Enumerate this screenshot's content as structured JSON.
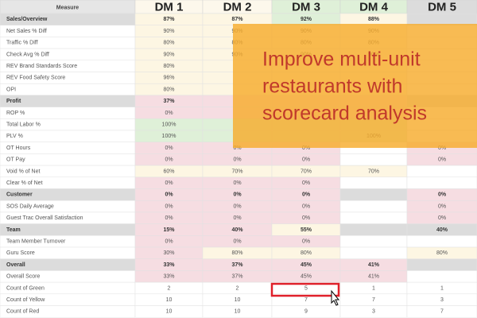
{
  "table": {
    "header": [
      "Measure",
      "DM 1",
      "DM 2",
      "DM 3",
      "DM 4",
      "DM 5"
    ],
    "header_fills": [
      "#e6e6e6",
      "#fdf8ec",
      "#fdf8ec",
      "#dff0d8",
      "#dff0d8",
      "#dcdcdc"
    ],
    "rows": [
      {
        "measure": "Sales/Overview",
        "section": true,
        "values": [
          "87%",
          "87%",
          "92%",
          "88%",
          null
        ],
        "fills": [
          "#fdf6e3",
          "#fdf6e3",
          "#dff0d8",
          "#fdf6e3",
          "#dcdcdc"
        ]
      },
      {
        "measure": "Net Sales % Diff",
        "values": [
          "90%",
          "90%",
          "90%",
          "90%",
          null
        ],
        "fills": [
          "#fdf6e3",
          "#fdf6e3",
          "#fdf6e3",
          "#fdf6e3",
          "#ffffff"
        ]
      },
      {
        "measure": "Traffic % Diff",
        "values": [
          "80%",
          "80%",
          "80%",
          "80%",
          null
        ],
        "fills": [
          "#fdf6e3",
          "#fdf6e3",
          "#fdf6e3",
          "#fdf6e3",
          "#ffffff"
        ]
      },
      {
        "measure": "Check Avg % Diff",
        "values": [
          "90%",
          "90%",
          "90%",
          "90%",
          null
        ],
        "fills": [
          "#fdf6e3",
          "#fdf6e3",
          "#fdf6e3",
          "#fdf6e3",
          "#ffffff"
        ]
      },
      {
        "measure": "REV Brand Standards Score",
        "values": [
          "80%",
          null,
          null,
          null,
          null
        ],
        "fills": [
          "#fdf6e3",
          "#fdf6e3",
          "#fdf6e3",
          "#fdf6e3",
          "#ffffff"
        ]
      },
      {
        "measure": "REV Food Safety Score",
        "values": [
          "96%",
          null,
          null,
          null,
          null
        ],
        "fills": [
          "#fdf6e3",
          "#fdf6e3",
          "#fdf6e3",
          "#fdf6e3",
          "#ffffff"
        ]
      },
      {
        "measure": "OPI",
        "values": [
          "80%",
          null,
          null,
          null,
          null
        ],
        "fills": [
          "#fdf6e3",
          "#fdf6e3",
          "#fdf6e3",
          "#fdf6e3",
          "#ffffff"
        ]
      },
      {
        "measure": "Profit",
        "section": true,
        "values": [
          "37%",
          null,
          null,
          null,
          null
        ],
        "fills": [
          "#f6dde2",
          "#f6dde2",
          "#f6dde2",
          "#f6dde2",
          "#dcdcdc"
        ]
      },
      {
        "measure": "ROP %",
        "values": [
          "0%",
          null,
          null,
          null,
          null
        ],
        "fills": [
          "#f6dde2",
          "#f6dde2",
          "#f6dde2",
          "#f6dde2",
          "#ffffff"
        ]
      },
      {
        "measure": "Total Labor %",
        "values": [
          "100%",
          null,
          null,
          null,
          null
        ],
        "fills": [
          "#dff0d8",
          "#dff0d8",
          "#dff0d8",
          "#dff0d8",
          "#ffffff"
        ]
      },
      {
        "measure": "PLV %",
        "values": [
          "100%",
          null,
          null,
          "100%",
          null
        ],
        "fills": [
          "#dff0d8",
          "#dff0d8",
          "#dff0d8",
          "#dff0d8",
          "#ffffff"
        ]
      },
      {
        "measure": "OT Hours",
        "values": [
          "0%",
          "0%",
          "0%",
          null,
          "0%"
        ],
        "fills": [
          "#f6dde2",
          "#f6dde2",
          "#f6dde2",
          "#ffffff",
          "#f6dde2"
        ]
      },
      {
        "measure": "OT Pay",
        "values": [
          "0%",
          "0%",
          "0%",
          null,
          "0%"
        ],
        "fills": [
          "#f6dde2",
          "#f6dde2",
          "#f6dde2",
          "#ffffff",
          "#f6dde2"
        ]
      },
      {
        "measure": "Void % of Net",
        "values": [
          "60%",
          "70%",
          "70%",
          "70%",
          null
        ],
        "fills": [
          "#fdf6e3",
          "#fdf6e3",
          "#fdf6e3",
          "#fdf6e3",
          "#ffffff"
        ]
      },
      {
        "measure": "Clear % of Net",
        "values": [
          "0%",
          "0%",
          "0%",
          null,
          null
        ],
        "fills": [
          "#f6dde2",
          "#f6dde2",
          "#f6dde2",
          "#ffffff",
          "#ffffff"
        ]
      },
      {
        "measure": "Customer",
        "section": true,
        "values": [
          "0%",
          "0%",
          "0%",
          null,
          "0%"
        ],
        "fills": [
          "#f6dde2",
          "#f6dde2",
          "#f6dde2",
          "#dcdcdc",
          "#f6dde2"
        ]
      },
      {
        "measure": "SOS Daily Average",
        "values": [
          "0%",
          "0%",
          "0%",
          null,
          "0%"
        ],
        "fills": [
          "#f6dde2",
          "#f6dde2",
          "#f6dde2",
          "#ffffff",
          "#f6dde2"
        ]
      },
      {
        "measure": "Guest Trac Overall Satisfaction",
        "values": [
          "0%",
          "0%",
          "0%",
          null,
          "0%"
        ],
        "fills": [
          "#f6dde2",
          "#f6dde2",
          "#f6dde2",
          "#ffffff",
          "#f6dde2"
        ]
      },
      {
        "measure": "Team",
        "section": true,
        "values": [
          "15%",
          "40%",
          "55%",
          null,
          "40%"
        ],
        "fills": [
          "#f6dde2",
          "#f6dde2",
          "#fdf6e3",
          "#dcdcdc",
          "#dcdcdc"
        ]
      },
      {
        "measure": "Team Member Turnover",
        "values": [
          "0%",
          "0%",
          "0%",
          null,
          null
        ],
        "fills": [
          "#f6dde2",
          "#f6dde2",
          "#f6dde2",
          "#ffffff",
          "#ffffff"
        ]
      },
      {
        "measure": "Guru Score",
        "values": [
          "30%",
          "80%",
          "80%",
          null,
          "80%"
        ],
        "fills": [
          "#f6dde2",
          "#fdf6e3",
          "#fdf6e3",
          "#ffffff",
          "#fdf6e3"
        ]
      },
      {
        "measure": "Overall",
        "section": true,
        "values": [
          "33%",
          "37%",
          "45%",
          "41%",
          null
        ],
        "fills": [
          "#f6dde2",
          "#f6dde2",
          "#f6dde2",
          "#f6dde2",
          "#dcdcdc"
        ]
      },
      {
        "measure": "Overall Score",
        "values": [
          "33%",
          "37%",
          "45%",
          "41%",
          null
        ],
        "fills": [
          "#f6dde2",
          "#f6dde2",
          "#f6dde2",
          "#f6dde2",
          "#ffffff"
        ]
      },
      {
        "measure": "Count of Green",
        "values": [
          "2",
          "2",
          "5",
          "1",
          "1"
        ],
        "fills": [
          "#ffffff",
          "#ffffff",
          "#ffffff",
          "#ffffff",
          "#ffffff"
        ]
      },
      {
        "measure": "Count of Yellow",
        "values": [
          "10",
          "10",
          "7",
          "7",
          "3"
        ],
        "fills": [
          "#ffffff",
          "#ffffff",
          "#ffffff",
          "#ffffff",
          "#ffffff"
        ]
      },
      {
        "measure": "Count of Red",
        "values": [
          "10",
          "10",
          "9",
          "3",
          "7"
        ],
        "fills": [
          "#ffffff",
          "#ffffff",
          "#ffffff",
          "#ffffff",
          "#ffffff"
        ]
      }
    ]
  },
  "overlay": {
    "lines": [
      "Improve multi-unit",
      "restaurants with",
      "scorecard analysis"
    ]
  }
}
